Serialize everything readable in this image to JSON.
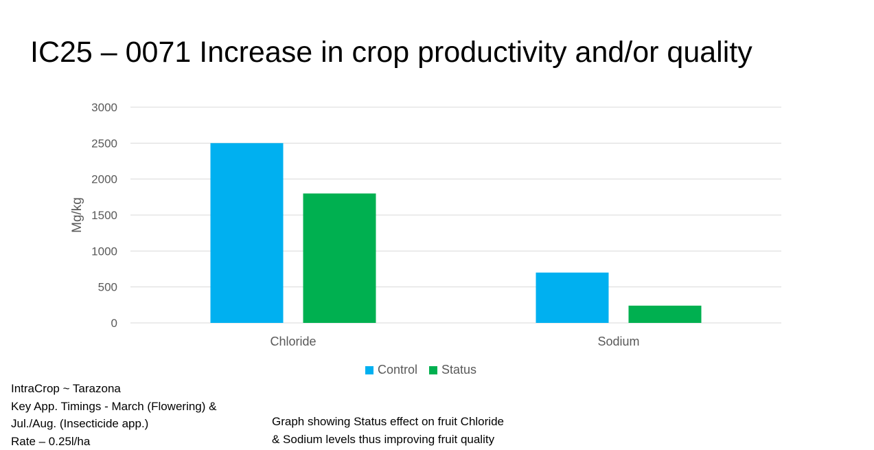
{
  "slide": {
    "title": "IC25 – 0071 Increase in crop productivity and/or quality"
  },
  "notes": {
    "left": [
      "IntraCrop ~ Tarazona",
      "Key App. Timings - March (Flowering) &",
      "Jul./Aug. (Insecticide app.)",
      "Rate – 0.25l/ha"
    ],
    "right": [
      "Graph showing Status effect on fruit Chloride",
      "& Sodium levels thus improving fruit quality"
    ]
  },
  "chart_data": {
    "type": "bar",
    "categories": [
      "Chloride",
      "Sodium"
    ],
    "series": [
      {
        "name": "Control",
        "values": [
          2500,
          700
        ],
        "color": "#00B0F0"
      },
      {
        "name": "Status",
        "values": [
          1800,
          240
        ],
        "color": "#00B050"
      }
    ],
    "title": "",
    "xlabel": "",
    "ylabel": "Mg/kg",
    "ylim": [
      0,
      3000
    ],
    "yticks": [
      0,
      500,
      1000,
      1500,
      2000,
      2500,
      3000
    ],
    "grid": true,
    "legend": "bottom"
  }
}
